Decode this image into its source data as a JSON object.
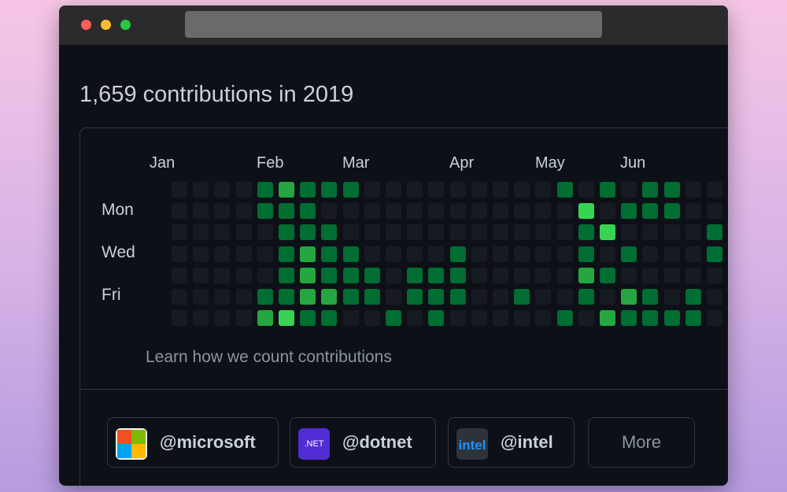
{
  "window": {
    "controls": [
      "close",
      "minimize",
      "zoom"
    ]
  },
  "header": {
    "title": "1,659 contributions in 2019"
  },
  "calendar": {
    "months": [
      "Jan",
      "Feb",
      "Mar",
      "Apr",
      "May",
      "Jun"
    ],
    "day_labels": [
      "Mon",
      "Wed",
      "Fri"
    ],
    "colors": [
      "#161b22",
      "#0e4429",
      "#006d32",
      "#26a641",
      "#39d353"
    ],
    "levels": [
      [
        0,
        0,
        0,
        0,
        2,
        3,
        2,
        2,
        2,
        0,
        0,
        0,
        0,
        0,
        0,
        0,
        0,
        0,
        2,
        0,
        2,
        0,
        2,
        2,
        0
      ],
      [
        0,
        0,
        0,
        0,
        2,
        2,
        2,
        0,
        0,
        0,
        0,
        0,
        0,
        0,
        0,
        0,
        0,
        0,
        0,
        4,
        0,
        2,
        2,
        2,
        0
      ],
      [
        0,
        0,
        0,
        0,
        0,
        2,
        2,
        2,
        0,
        0,
        0,
        0,
        0,
        0,
        0,
        0,
        0,
        0,
        0,
        2,
        4,
        0,
        0,
        0,
        0,
        2
      ],
      [
        0,
        0,
        0,
        0,
        0,
        2,
        3,
        2,
        2,
        0,
        0,
        0,
        0,
        2,
        0,
        0,
        0,
        0,
        0,
        2,
        0,
        2,
        0,
        0,
        0,
        2
      ],
      [
        0,
        0,
        0,
        0,
        0,
        2,
        3,
        2,
        2,
        2,
        0,
        2,
        2,
        2,
        0,
        0,
        0,
        0,
        0,
        3,
        2,
        0,
        0,
        0,
        0,
        0
      ],
      [
        0,
        0,
        0,
        0,
        2,
        2,
        3,
        3,
        2,
        2,
        0,
        2,
        2,
        2,
        0,
        0,
        2,
        0,
        0,
        2,
        0,
        3,
        2,
        0,
        2,
        0,
        2
      ],
      [
        0,
        0,
        0,
        0,
        3,
        4,
        2,
        2,
        0,
        0,
        2,
        0,
        2,
        0,
        0,
        0,
        0,
        0,
        2,
        0,
        3,
        2,
        2,
        2,
        2,
        0
      ]
    ]
  },
  "learn_link": "Learn how we count contributions",
  "orgs": [
    {
      "name": "@microsoft",
      "icon": "microsoft-logo"
    },
    {
      "name": "@dotnet",
      "icon": "dotnet-logo",
      "icon_text": ".NET"
    },
    {
      "name": "@intel",
      "icon": "intel-logo",
      "icon_text": "intel"
    }
  ],
  "more_label": "More"
}
